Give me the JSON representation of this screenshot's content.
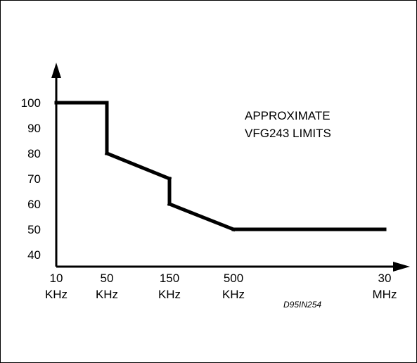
{
  "chart_data": {
    "type": "line",
    "title": "",
    "xlabel": "",
    "ylabel": "",
    "grid": false,
    "legend": "none",
    "x_ticks": [
      {
        "value": "10",
        "unit": "KHz"
      },
      {
        "value": "50",
        "unit": "KHz"
      },
      {
        "value": "150",
        "unit": "KHz"
      },
      {
        "value": "500",
        "unit": "KHz"
      },
      {
        "value": "30",
        "unit": "MHz"
      }
    ],
    "y_ticks": [
      "100",
      "90",
      "80",
      "70",
      "60",
      "50",
      "40"
    ],
    "ylim": [
      40,
      100
    ],
    "series": [
      {
        "points": [
          {
            "x": "10 KHz",
            "y": 100
          },
          {
            "x": "50 KHz",
            "y": 100
          },
          {
            "x": "50 KHz",
            "y": 80
          },
          {
            "x": "150 KHz",
            "y": 70
          },
          {
            "x": "150 KHz",
            "y": 60
          },
          {
            "x": "500 KHz",
            "y": 50
          },
          {
            "x": "30 MHz",
            "y": 50
          }
        ]
      }
    ],
    "annotation": [
      "APPROXIMATE",
      "VFG243 LIMITS"
    ],
    "figure_ref": "D95IN254",
    "colors": {
      "line": "#000000",
      "axis": "#000000",
      "background": "#ffffff"
    }
  }
}
